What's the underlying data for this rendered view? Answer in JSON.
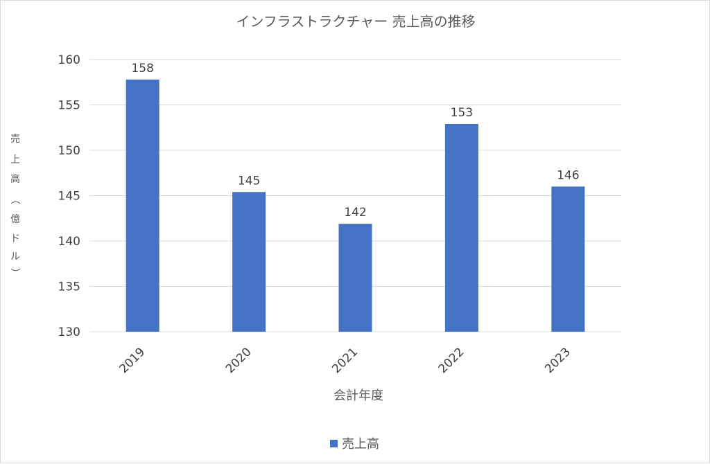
{
  "chart_data": {
    "type": "bar",
    "title": "インフラストラクチャー 売上高の推移",
    "xlabel": "会計年度",
    "ylabel": "売上高（億ドル）",
    "categories": [
      "2019",
      "2020",
      "2021",
      "2022",
      "2023"
    ],
    "series": [
      {
        "name": "売上高",
        "values": [
          157.8,
          145.4,
          141.9,
          152.9,
          146.0
        ],
        "labels": [
          "158",
          "145",
          "142",
          "153",
          "146"
        ]
      }
    ],
    "ylim": [
      130,
      160
    ],
    "yticks": [
      130,
      135,
      140,
      145,
      150,
      155,
      160
    ],
    "grid": true,
    "legend": "bottom",
    "bar_color": "#4472C4",
    "grid_color": "#d9d9d9"
  }
}
